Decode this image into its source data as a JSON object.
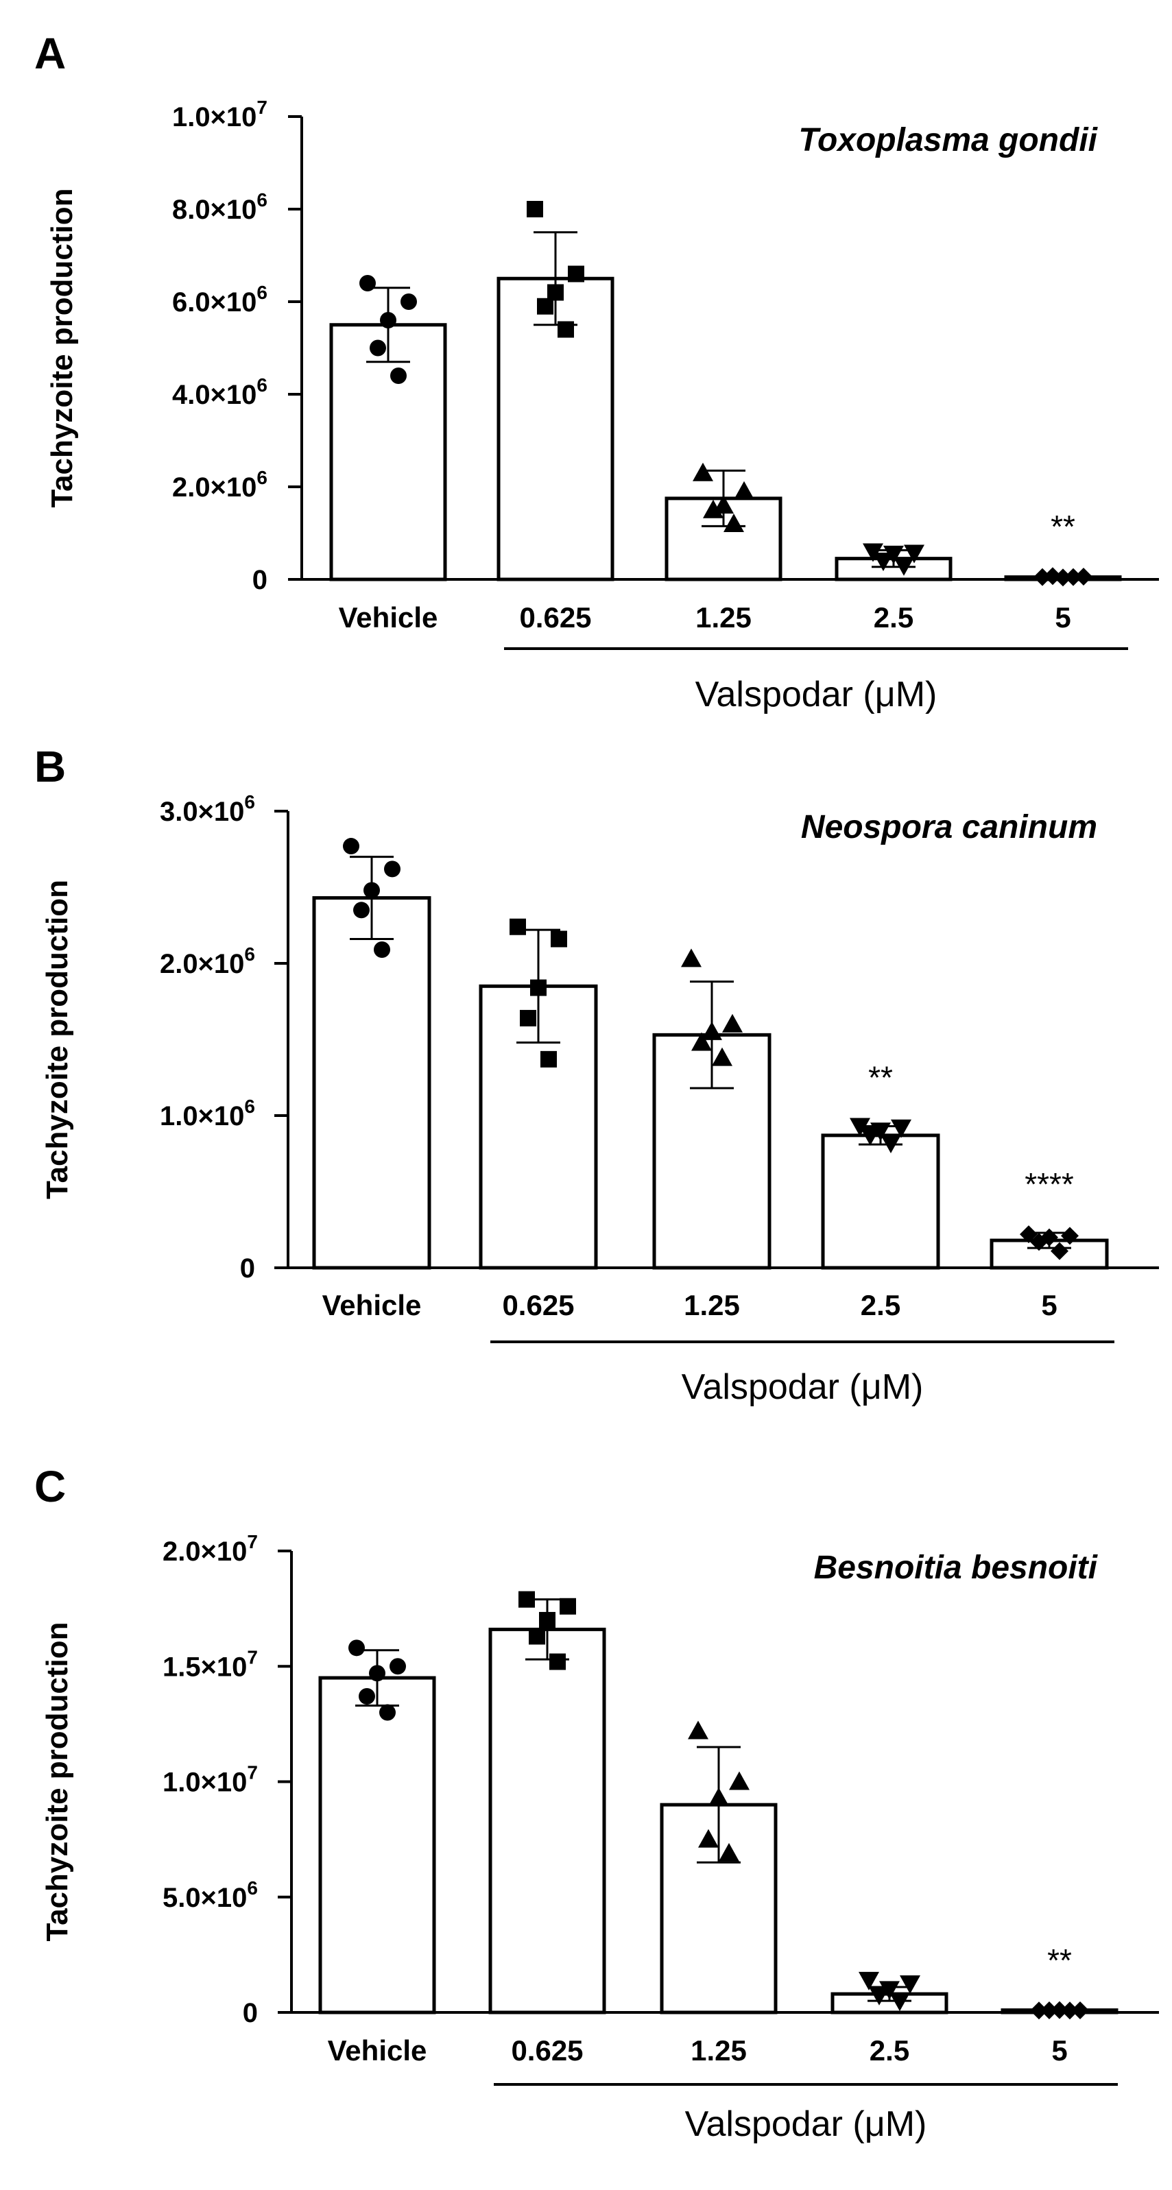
{
  "figure": {
    "panels": [
      "A",
      "B",
      "C"
    ]
  },
  "chart_data": [
    {
      "panel": "A",
      "type": "bar",
      "title": "Toxoplasma gondii",
      "ylabel": "Tachyzoite production",
      "xlabel": "Valspodar (μM)",
      "categories": [
        "Vehicle",
        "0.625",
        "1.25",
        "2.5",
        "5"
      ],
      "values": [
        5500000,
        6500000,
        1750000,
        450000,
        50000
      ],
      "sd": [
        800000,
        1000000,
        600000,
        180000,
        40000
      ],
      "points": [
        [
          6400000,
          6000000,
          5600000,
          5000000,
          4400000
        ],
        [
          8000000,
          6600000,
          6200000,
          5900000,
          5400000
        ],
        [
          2300000,
          1900000,
          1600000,
          1500000,
          1200000
        ],
        [
          600000,
          570000,
          550000,
          400000,
          300000
        ],
        [
          50000,
          60000,
          40000,
          70000,
          50000
        ]
      ],
      "markers": [
        "circle",
        "square",
        "triangle",
        "triangle-down",
        "diamond"
      ],
      "significance": [
        "",
        "",
        "",
        "",
        "**"
      ],
      "ylim": [
        0,
        10000000
      ],
      "yticks": [
        {
          "value": 0,
          "mantissa": "0",
          "exp": ""
        },
        {
          "value": 2000000,
          "mantissa": "2.0×10",
          "exp": "6"
        },
        {
          "value": 4000000,
          "mantissa": "4.0×10",
          "exp": "6"
        },
        {
          "value": 6000000,
          "mantissa": "6.0×10",
          "exp": "6"
        },
        {
          "value": 8000000,
          "mantissa": "8.0×10",
          "exp": "6"
        },
        {
          "value": 10000000,
          "mantissa": "1.0×10",
          "exp": "7"
        }
      ]
    },
    {
      "panel": "B",
      "type": "bar",
      "title": "Neospora caninum",
      "ylabel": "Tachyzoite production",
      "xlabel": "Valspodar (μM)",
      "categories": [
        "Vehicle",
        "0.625",
        "1.25",
        "2.5",
        "5"
      ],
      "values": [
        2430000,
        1850000,
        1530000,
        870000,
        180000
      ],
      "sd": [
        270000,
        370000,
        350000,
        60000,
        50000
      ],
      "points": [
        [
          2770000,
          2620000,
          2480000,
          2350000,
          2090000
        ],
        [
          2240000,
          2160000,
          1840000,
          1640000,
          1370000
        ],
        [
          2030000,
          1600000,
          1550000,
          1480000,
          1380000
        ],
        [
          930000,
          920000,
          900000,
          870000,
          820000
        ],
        [
          220000,
          210000,
          200000,
          170000,
          110000
        ]
      ],
      "markers": [
        "circle",
        "square",
        "triangle",
        "triangle-down",
        "diamond"
      ],
      "significance": [
        "",
        "",
        "",
        "**",
        "****"
      ],
      "ylim": [
        0,
        3000000
      ],
      "yticks": [
        {
          "value": 0,
          "mantissa": "0",
          "exp": ""
        },
        {
          "value": 1000000,
          "mantissa": "1.0×10",
          "exp": "6"
        },
        {
          "value": 2000000,
          "mantissa": "2.0×10",
          "exp": "6"
        },
        {
          "value": 3000000,
          "mantissa": "3.0×10",
          "exp": "6"
        }
      ]
    },
    {
      "panel": "C",
      "type": "bar",
      "title": "Besnoitia besnoiti",
      "ylabel": "Tachyzoite production",
      "xlabel": "Valspodar (μM)",
      "categories": [
        "Vehicle",
        "0.625",
        "1.25",
        "2.5",
        "5"
      ],
      "values": [
        14500000,
        16600000,
        9000000,
        800000,
        100000
      ],
      "sd": [
        1200000,
        1300000,
        2500000,
        300000,
        50000
      ],
      "points": [
        [
          15800000,
          15000000,
          14700000,
          13700000,
          13000000
        ],
        [
          17900000,
          17600000,
          17000000,
          16300000,
          15200000
        ],
        [
          12200000,
          10000000,
          9300000,
          7500000,
          6900000
        ],
        [
          1400000,
          1250000,
          1000000,
          750000,
          500000
        ],
        [
          80000,
          90000,
          100000,
          90000,
          80000
        ]
      ],
      "markers": [
        "circle",
        "square",
        "triangle",
        "triangle-down",
        "diamond"
      ],
      "significance": [
        "",
        "",
        "",
        "",
        "**"
      ],
      "ylim": [
        0,
        20000000
      ],
      "yticks": [
        {
          "value": 0,
          "mantissa": "0",
          "exp": ""
        },
        {
          "value": 5000000,
          "mantissa": "5.0×10",
          "exp": "6"
        },
        {
          "value": 10000000,
          "mantissa": "1.0×10",
          "exp": "7"
        },
        {
          "value": 15000000,
          "mantissa": "1.5×10",
          "exp": "7"
        },
        {
          "value": 20000000,
          "mantissa": "2.0×10",
          "exp": "7"
        }
      ]
    }
  ]
}
